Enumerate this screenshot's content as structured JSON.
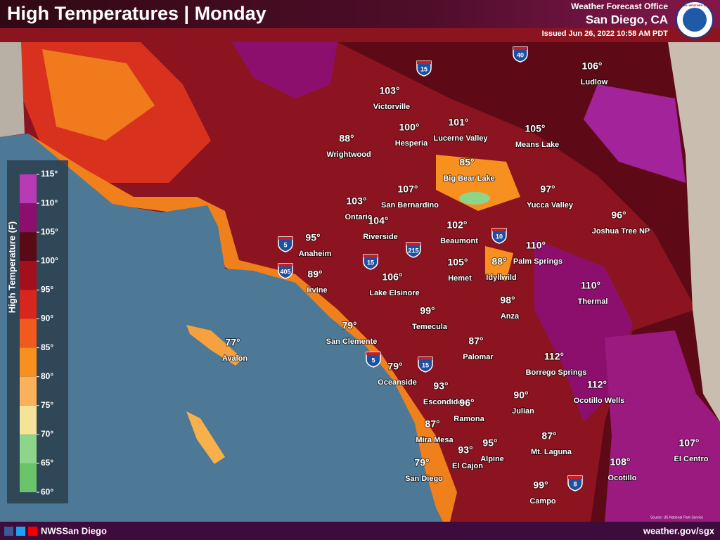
{
  "header": {
    "title": "High Temperatures | Monday",
    "office_line": "Weather Forecast Office",
    "office": "San Diego, CA",
    "issued": "Issued Jun 26, 2022 10:58 AM PDT",
    "logo_text": "NATIONAL WEATHER SERVICE"
  },
  "legend": {
    "title": "High Temperature (F)",
    "ticks": [
      "115°",
      "110°",
      "105°",
      "100°",
      "95°",
      "90°",
      "85°",
      "80°",
      "75°",
      "70°",
      "65°",
      "60°"
    ]
  },
  "cities": [
    {
      "temp": "103°",
      "name": "Victorville"
    },
    {
      "temp": "100°",
      "name": "Hesperia"
    },
    {
      "temp": "101°",
      "name": "Lucerne Valley"
    },
    {
      "temp": "106°",
      "name": "Ludlow"
    },
    {
      "temp": "105°",
      "name": "Means Lake"
    },
    {
      "temp": "88°",
      "name": "Wrightwood"
    },
    {
      "temp": "85°",
      "name": "Big Bear Lake"
    },
    {
      "temp": "107°",
      "name": "San Bernardino"
    },
    {
      "temp": "97°",
      "name": "Yucca Valley"
    },
    {
      "temp": "103°",
      "name": "Ontario"
    },
    {
      "temp": "104°",
      "name": "Riverside"
    },
    {
      "temp": "96°",
      "name": "Joshua Tree NP"
    },
    {
      "temp": "95°",
      "name": "Anaheim"
    },
    {
      "temp": "102°",
      "name": "Beaumont"
    },
    {
      "temp": "110°",
      "name": "Palm Springs"
    },
    {
      "temp": "105°",
      "name": "Hemet"
    },
    {
      "temp": "88°",
      "name": "Idyllwild"
    },
    {
      "temp": "89°",
      "name": "Irvine"
    },
    {
      "temp": "106°",
      "name": "Lake Elsinore"
    },
    {
      "temp": "110°",
      "name": "Thermal"
    },
    {
      "temp": "98°",
      "name": "Anza"
    },
    {
      "temp": "99°",
      "name": "Temecula"
    },
    {
      "temp": "79°",
      "name": "San Clemente"
    },
    {
      "temp": "87°",
      "name": "Palomar"
    },
    {
      "temp": "77°",
      "name": "Avalon"
    },
    {
      "temp": "112°",
      "name": "Borrego Springs"
    },
    {
      "temp": "79°",
      "name": "Oceanside"
    },
    {
      "temp": "112°",
      "name": "Ocotillo Wells"
    },
    {
      "temp": "93°",
      "name": "Escondido"
    },
    {
      "temp": "96°",
      "name": "Ramona"
    },
    {
      "temp": "90°",
      "name": "Julian"
    },
    {
      "temp": "87°",
      "name": "Mira Mesa"
    },
    {
      "temp": "87°",
      "name": "Mt. Laguna"
    },
    {
      "temp": "93°",
      "name": "El Cajon"
    },
    {
      "temp": "95°",
      "name": "Alpine"
    },
    {
      "temp": "107°",
      "name": "El Centro"
    },
    {
      "temp": "79°",
      "name": "San Diego"
    },
    {
      "temp": "108°",
      "name": "Ocotillo"
    },
    {
      "temp": "99°",
      "name": "Campo"
    }
  ],
  "shields": [
    "15",
    "40",
    "5",
    "405",
    "15",
    "215",
    "10",
    "5",
    "15",
    "8"
  ],
  "source": "Source: US National Park Service",
  "footer": {
    "handle": "NWSSan Diego",
    "website": "weather.gov/sgx"
  }
}
